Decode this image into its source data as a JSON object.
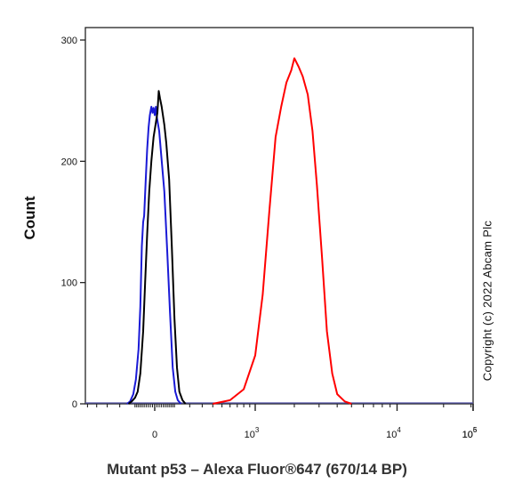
{
  "chart_data": {
    "type": "line",
    "title": "",
    "xlabel": "Mutant p53 – Alexa Fluor®647 (670/14 BP)",
    "ylabel": "Count",
    "xscale": "biexponential",
    "ylim": [
      0,
      300
    ],
    "y_ticks": [
      0,
      100,
      200,
      300
    ],
    "x_ticks": [
      {
        "base": "0",
        "exp": ""
      },
      {
        "base": "10",
        "exp": "3"
      },
      {
        "base": "10",
        "exp": "4"
      },
      {
        "base": "10",
        "exp": "5"
      },
      {
        "base": "10",
        "exp": "6"
      }
    ],
    "grid": false,
    "legend": "none",
    "series": [
      {
        "color": "#1a1ad6",
        "points": [
          [
            -150,
            0
          ],
          [
            -130,
            2
          ],
          [
            -110,
            8
          ],
          [
            -95,
            20
          ],
          [
            -80,
            45
          ],
          [
            -70,
            80
          ],
          [
            -62,
            130
          ],
          [
            -55,
            150
          ],
          [
            -50,
            155
          ],
          [
            -42,
            185
          ],
          [
            -35,
            210
          ],
          [
            -28,
            228
          ],
          [
            -22,
            238
          ],
          [
            -15,
            245
          ],
          [
            -10,
            240
          ],
          [
            -5,
            244
          ],
          [
            0,
            238
          ],
          [
            5,
            245
          ],
          [
            10,
            236
          ],
          [
            20,
            225
          ],
          [
            30,
            205
          ],
          [
            45,
            175
          ],
          [
            60,
            125
          ],
          [
            75,
            75
          ],
          [
            90,
            30
          ],
          [
            105,
            10
          ],
          [
            120,
            3
          ],
          [
            140,
            0
          ]
        ]
      },
      {
        "color": "#000000",
        "points": [
          [
            -140,
            0
          ],
          [
            -120,
            2
          ],
          [
            -100,
            5
          ],
          [
            -85,
            10
          ],
          [
            -70,
            25
          ],
          [
            -55,
            60
          ],
          [
            -45,
            100
          ],
          [
            -35,
            140
          ],
          [
            -25,
            175
          ],
          [
            -15,
            200
          ],
          [
            -5,
            220
          ],
          [
            5,
            232
          ],
          [
            12,
            240
          ],
          [
            18,
            258
          ],
          [
            24,
            252
          ],
          [
            32,
            245
          ],
          [
            45,
            230
          ],
          [
            55,
            215
          ],
          [
            70,
            185
          ],
          [
            85,
            130
          ],
          [
            100,
            70
          ],
          [
            115,
            30
          ],
          [
            130,
            10
          ],
          [
            150,
            3
          ],
          [
            170,
            0
          ]
        ]
      },
      {
        "color": "#ff0000",
        "points": [
          [
            400,
            0
          ],
          [
            600,
            3
          ],
          [
            800,
            12
          ],
          [
            1000,
            40
          ],
          [
            1150,
            90
          ],
          [
            1300,
            160
          ],
          [
            1450,
            220
          ],
          [
            1600,
            245
          ],
          [
            1750,
            265
          ],
          [
            1900,
            275
          ],
          [
            2000,
            285
          ],
          [
            2150,
            278
          ],
          [
            2300,
            270
          ],
          [
            2500,
            255
          ],
          [
            2700,
            225
          ],
          [
            2900,
            180
          ],
          [
            3150,
            120
          ],
          [
            3400,
            60
          ],
          [
            3700,
            25
          ],
          [
            4000,
            8
          ],
          [
            4500,
            2
          ],
          [
            5000,
            0
          ]
        ]
      }
    ]
  },
  "copyright": "Copyright (c) 2022 Abcam Plc"
}
